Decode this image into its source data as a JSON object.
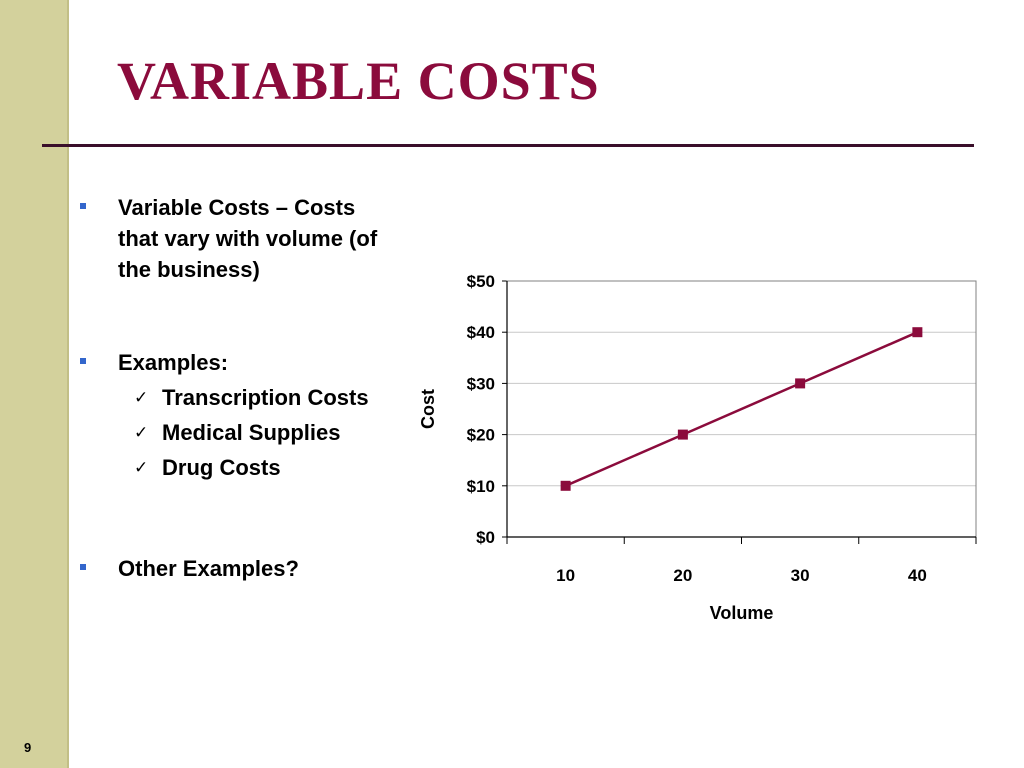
{
  "slide": {
    "title": "VARIABLE COSTS",
    "number": "9"
  },
  "bullets": [
    {
      "text": "Variable Costs – Costs that vary with volume (of the business)"
    },
    {
      "text": "Examples:"
    },
    {
      "text": "Other Examples?"
    }
  ],
  "examples": [
    "Transcription Costs",
    "Medical Supplies",
    "Drug Costs"
  ],
  "colors": {
    "title": "#8b0b3c",
    "sidebar": "#d3d19c",
    "bullet_marker": "#3366cc",
    "series": "#8b0b3c"
  },
  "chart_data": {
    "type": "line",
    "x": [
      10,
      20,
      30,
      40
    ],
    "series": [
      {
        "values": [
          10,
          20,
          30,
          40
        ]
      }
    ],
    "y_ticks": [
      "$0",
      "$10",
      "$20",
      "$30",
      "$40",
      "$50"
    ],
    "x_ticks": [
      "10",
      "20",
      "30",
      "40"
    ],
    "xlabel": "Volume",
    "ylabel": "Cost",
    "ylim": [
      0,
      50
    ],
    "grid": true,
    "marker": "square"
  }
}
